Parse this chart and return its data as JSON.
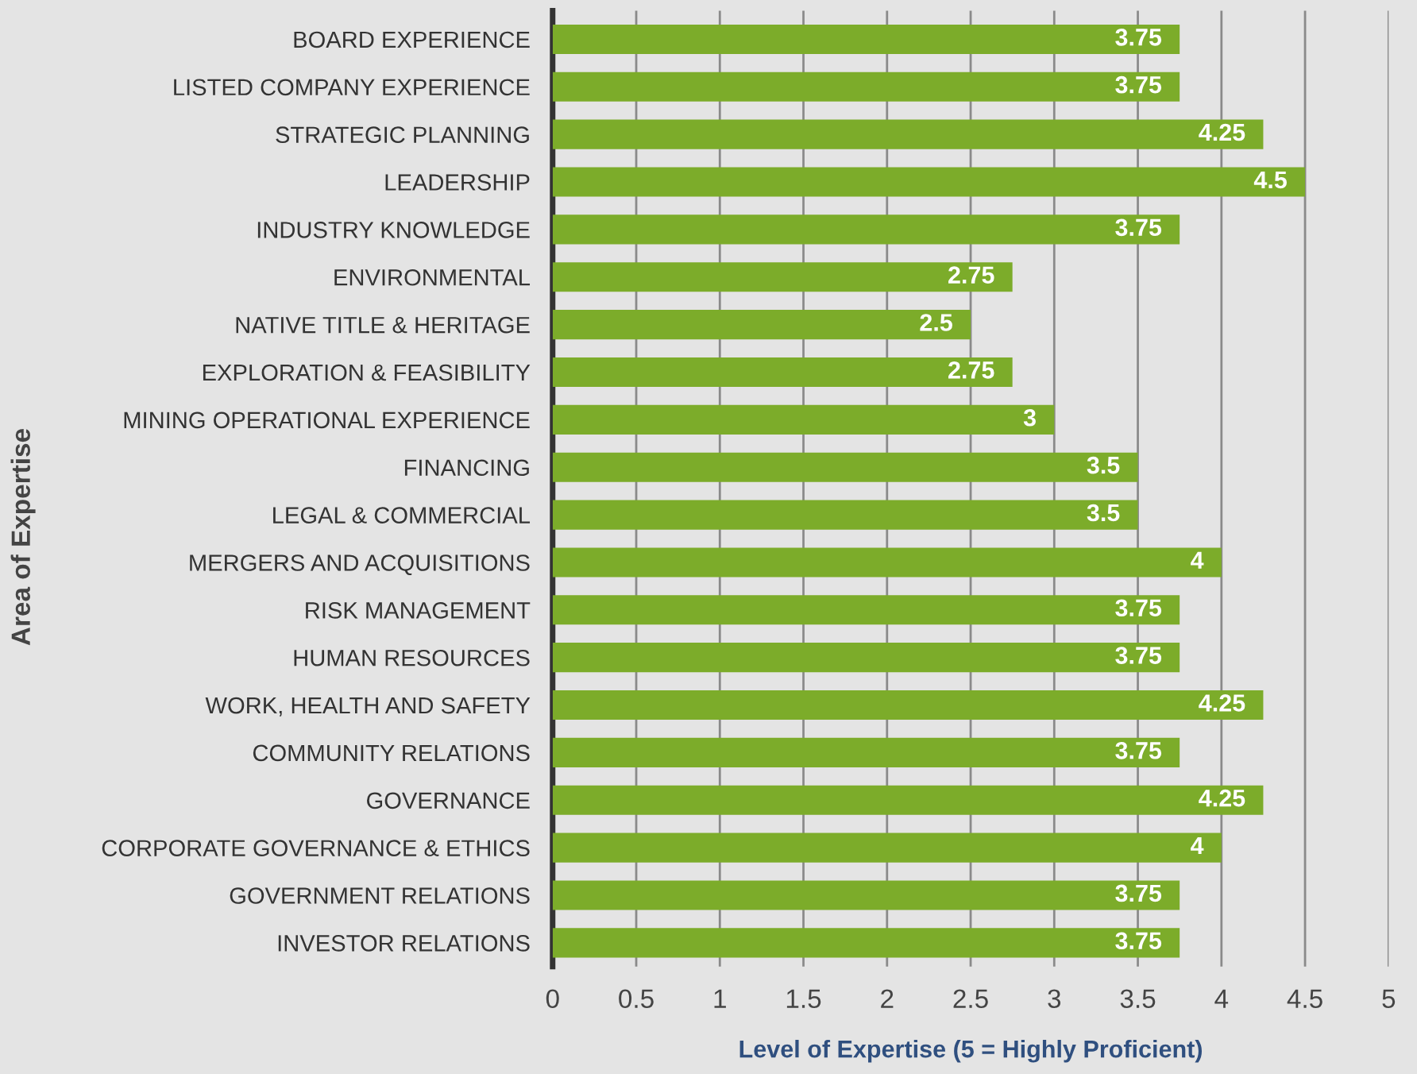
{
  "chart_data": {
    "type": "bar",
    "orientation": "horizontal",
    "xlabel": "Level of Expertise (5 = Highly Proficient)",
    "ylabel": "Area of Expertise",
    "categories": [
      "BOARD EXPERIENCE",
      "LISTED COMPANY EXPERIENCE",
      "STRATEGIC PLANNING",
      "LEADERSHIP",
      "INDUSTRY KNOWLEDGE",
      "ENVIRONMENTAL",
      "NATIVE TITLE & HERITAGE",
      "EXPLORATION & FEASIBILITY",
      "MINING OPERATIONAL EXPERIENCE",
      "FINANCING",
      "LEGAL & COMMERCIAL",
      "MERGERS AND ACQUISITIONS",
      "RISK MANAGEMENT",
      "HUMAN RESOURCES",
      "WORK, HEALTH AND SAFETY",
      "COMMUNITY RELATIONS",
      "GOVERNANCE",
      "CORPORATE GOVERNANCE & ETHICS",
      "GOVERNMENT RELATIONS",
      "INVESTOR RELATIONS"
    ],
    "values": [
      3.75,
      3.75,
      4.25,
      4.5,
      3.75,
      2.75,
      2.5,
      2.75,
      3,
      3.5,
      3.5,
      4,
      3.75,
      3.75,
      4.25,
      3.75,
      4.25,
      4,
      3.75,
      3.75
    ],
    "color": "#7cac2a",
    "xlim": [
      0,
      5
    ],
    "xticks": [
      0,
      0.5,
      1,
      1.5,
      2,
      2.5,
      3,
      3.5,
      4,
      4.5,
      5
    ],
    "grid": "x",
    "data_labels": true
  }
}
